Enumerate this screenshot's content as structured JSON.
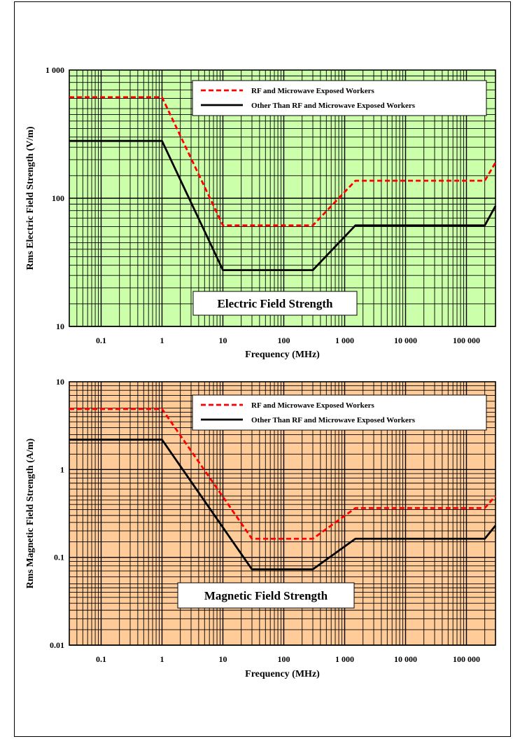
{
  "chart_data": [
    {
      "type": "line",
      "title": "Electric Field Strength",
      "xlabel": "Frequency (MHz)",
      "ylabel": "Rms Electric Field Strength (V/m)",
      "xscale": "log",
      "yscale": "log",
      "xlim": [
        0.03,
        300000
      ],
      "ylim": [
        10,
        1000
      ],
      "x_ticks": [
        {
          "value": 0.1,
          "label": "0.1"
        },
        {
          "value": 1,
          "label": "1"
        },
        {
          "value": 10,
          "label": "10"
        },
        {
          "value": 100,
          "label": "100"
        },
        {
          "value": 1000,
          "label": "1 000"
        },
        {
          "value": 10000,
          "label": "10 000"
        },
        {
          "value": 100000,
          "label": "100 000"
        }
      ],
      "y_ticks": [
        {
          "value": 10,
          "label": "10"
        },
        {
          "value": 100,
          "label": "100"
        },
        {
          "value": 1000,
          "label": "1 000"
        }
      ],
      "grid": true,
      "background": "#ccffaa",
      "legend_position": "top-right",
      "series": [
        {
          "name": "RF and Microwave Exposed Workers",
          "color": "#ff0000",
          "dash": "dashed",
          "x": [
            0.03,
            1,
            10,
            300,
            1500,
            200000,
            300000
          ],
          "y": [
            614,
            614,
            61.4,
            61.4,
            137,
            137,
            190
          ]
        },
        {
          "name": "Other Than RF and Microwave Exposed Workers",
          "color": "#000000",
          "dash": "solid",
          "x": [
            0.03,
            1,
            10,
            300,
            1500,
            200000,
            300000
          ],
          "y": [
            280,
            280,
            27.5,
            27.5,
            61.4,
            61.4,
            87
          ]
        }
      ]
    },
    {
      "type": "line",
      "title": "Magnetic Field Strength",
      "xlabel": "Frequency (MHz)",
      "ylabel": "Rms Magnetic Field Strength (A/m)",
      "xscale": "log",
      "yscale": "log",
      "xlim": [
        0.03,
        300000
      ],
      "ylim": [
        0.01,
        10
      ],
      "x_ticks": [
        {
          "value": 0.1,
          "label": "0.1"
        },
        {
          "value": 1,
          "label": "1"
        },
        {
          "value": 10,
          "label": "10"
        },
        {
          "value": 100,
          "label": "100"
        },
        {
          "value": 1000,
          "label": "1 000"
        },
        {
          "value": 10000,
          "label": "10 000"
        },
        {
          "value": 100000,
          "label": "100 000"
        }
      ],
      "y_ticks": [
        {
          "value": 0.01,
          "label": "0.01"
        },
        {
          "value": 0.1,
          "label": "0.1"
        },
        {
          "value": 1,
          "label": "1"
        },
        {
          "value": 10,
          "label": "10"
        }
      ],
      "grid": true,
      "background": "#ffcc99",
      "legend_position": "top-right",
      "series": [
        {
          "name": "RF and Microwave Exposed Workers",
          "color": "#ff0000",
          "dash": "dashed",
          "x": [
            0.03,
            1,
            30,
            300,
            1500,
            200000,
            300000
          ],
          "y": [
            4.9,
            4.9,
            0.163,
            0.163,
            0.364,
            0.364,
            0.5
          ]
        },
        {
          "name": "Other Than RF and Microwave Exposed Workers",
          "color": "#000000",
          "dash": "solid",
          "x": [
            0.03,
            1,
            30,
            300,
            1500,
            200000,
            300000
          ],
          "y": [
            2.19,
            2.19,
            0.073,
            0.073,
            0.163,
            0.163,
            0.23
          ]
        }
      ]
    }
  ]
}
